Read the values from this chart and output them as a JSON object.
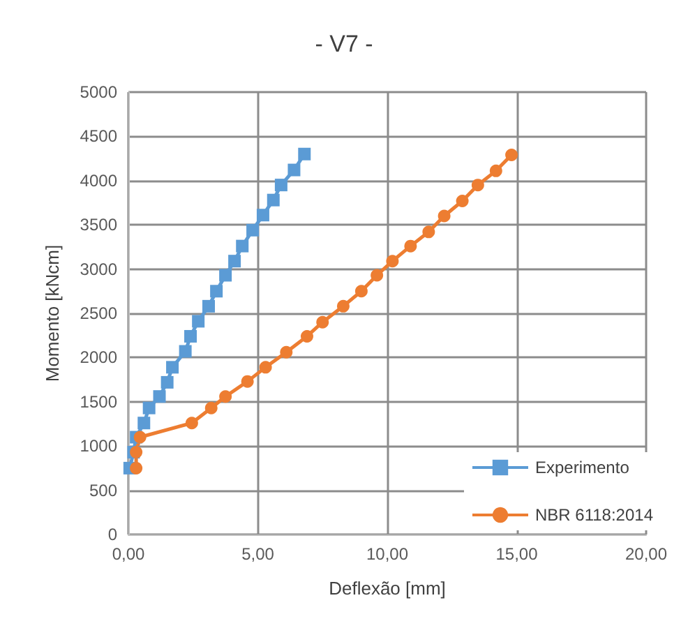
{
  "chart_data": {
    "type": "line",
    "title": "- V7 -",
    "xlabel": "Deflexão [mm]",
    "ylabel": "Momento [kNcm]",
    "xlim": [
      0,
      20
    ],
    "xticks": [
      {
        "value": 0,
        "label": "0,00"
      },
      {
        "value": 5,
        "label": "5,00"
      },
      {
        "value": 10,
        "label": "10,00"
      },
      {
        "value": 15,
        "label": "15,00"
      },
      {
        "value": 20,
        "label": "20,00"
      }
    ],
    "ylim": [
      0,
      5000
    ],
    "yticks": [
      0,
      500,
      1000,
      1500,
      2000,
      2500,
      3000,
      3500,
      4000,
      4500,
      5000
    ],
    "grid": true,
    "legend": "bottom right",
    "series": [
      {
        "name": "Experimento",
        "color": "#5b9bd5",
        "marker": "square",
        "x": [
          0.05,
          0.2,
          0.3,
          0.6,
          0.8,
          1.2,
          1.5,
          1.7,
          2.2,
          2.4,
          2.7,
          3.1,
          3.4,
          3.75,
          4.1,
          4.4,
          4.8,
          5.2,
          5.6,
          5.9,
          6.4,
          6.8
        ],
        "values": [
          750,
          930,
          1100,
          1260,
          1430,
          1560,
          1720,
          1890,
          2070,
          2240,
          2410,
          2580,
          2750,
          2930,
          3090,
          3260,
          3440,
          3610,
          3780,
          3950,
          4120,
          4300
        ]
      },
      {
        "name": "NBR 6118:2014",
        "color": "#ed7d31",
        "marker": "circle",
        "x": [
          0.3,
          0.3,
          0.45,
          2.45,
          3.2,
          3.75,
          4.6,
          5.3,
          6.1,
          6.9,
          7.5,
          8.3,
          9.0,
          9.6,
          10.2,
          10.9,
          11.6,
          12.2,
          12.9,
          13.5,
          14.2,
          14.8
        ],
        "values": [
          750,
          930,
          1100,
          1260,
          1430,
          1560,
          1730,
          1890,
          2060,
          2240,
          2400,
          2580,
          2750,
          2930,
          3090,
          3260,
          3420,
          3600,
          3770,
          3950,
          4110,
          4290
        ]
      }
    ]
  }
}
